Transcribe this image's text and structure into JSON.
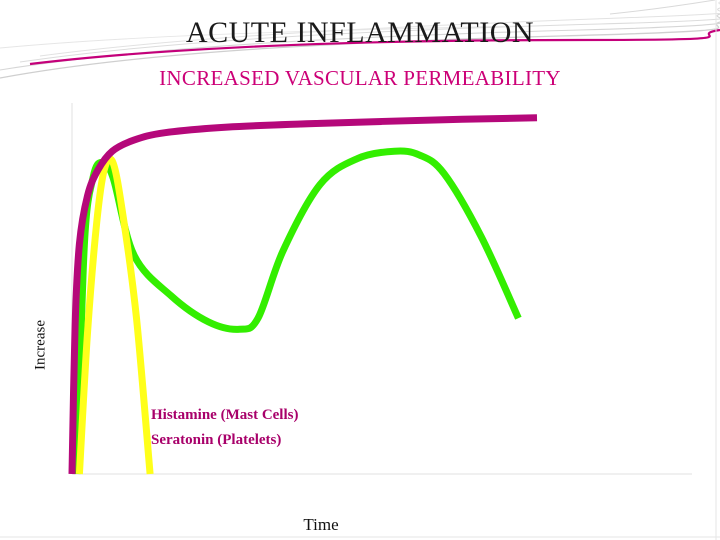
{
  "title": "ACUTE INFLAMMATION",
  "subtitle": "INCREASED VASCULAR PERMEABILITY",
  "colors": {
    "title_text": "#1a1a1a",
    "subtitle_text": "#cc0077",
    "annotation_text": "#a8006a",
    "series_magenta": "#b5087a",
    "series_yellow": "#ffff1a",
    "series_green": "#33ee00",
    "decor_lines": "#cfcfcf",
    "accent_line": "#c4007a"
  },
  "chart_data": {
    "type": "line",
    "xlabel": "Time",
    "ylabel": "Increase",
    "xlim": [
      0,
      100
    ],
    "ylim": [
      0,
      100
    ],
    "grid": false,
    "axis_ticks": false,
    "annotations": [
      "Histamine (Mast Cells)",
      "Seratonin (Platelets)"
    ],
    "series": [
      {
        "color": "#b5087a",
        "x": [
          0,
          0.5,
          1.2,
          2.5,
          4.2,
          6.5,
          10,
          15,
          25,
          40,
          60,
          75
        ],
        "y": [
          0,
          40,
          62,
          75,
          82,
          87,
          90,
          92,
          93.5,
          94.5,
          95.5,
          96
        ]
      },
      {
        "color": "#ffff1a",
        "x": [
          1.2,
          2.5,
          4.0,
          5.2,
          6.6,
          8.2,
          10.4,
          12.6
        ],
        "y": [
          0,
          38,
          68,
          82,
          84,
          70,
          42,
          0
        ]
      },
      {
        "color": "#33ee00",
        "x": [
          0.8,
          2.0,
          3.4,
          4.8,
          6.6,
          10,
          16,
          22,
          27,
          30,
          34,
          40,
          46,
          52,
          56,
          60,
          66,
          72
        ],
        "y": [
          0,
          62,
          80,
          84,
          80,
          59,
          48,
          41,
          39,
          42,
          60,
          78,
          85,
          87,
          86,
          81,
          64,
          42
        ]
      }
    ]
  }
}
